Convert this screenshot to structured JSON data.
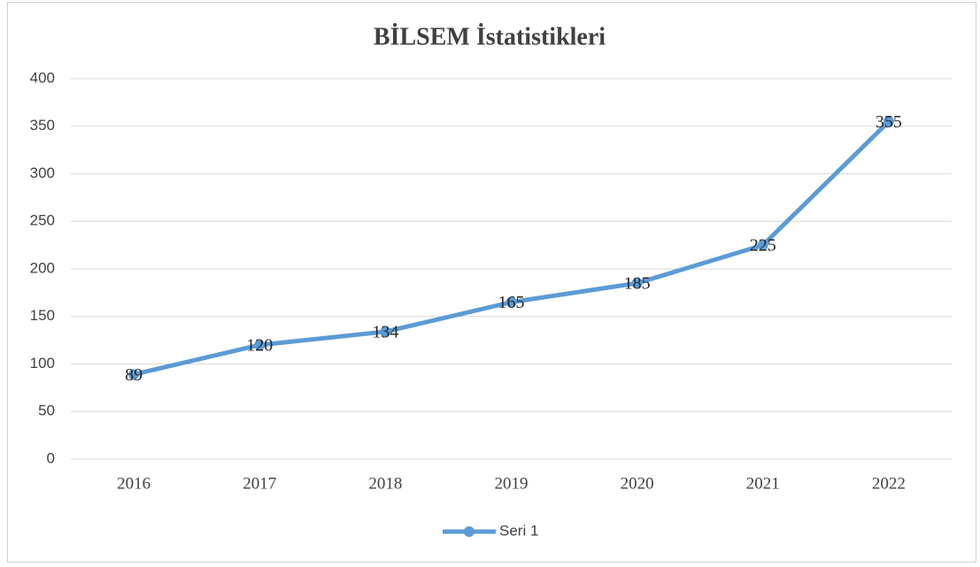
{
  "chart_data": {
    "type": "line",
    "title": "BİLSEM İstatistikleri",
    "categories": [
      "2016",
      "2017",
      "2018",
      "2019",
      "2020",
      "2021",
      "2022"
    ],
    "series": [
      {
        "name": "Seri 1",
        "color": "#5b9bd5",
        "values": [
          89,
          120,
          134,
          165,
          185,
          225,
          355
        ]
      }
    ],
    "ylim": [
      0,
      400
    ],
    "yticks": [
      0,
      50,
      100,
      150,
      200,
      250,
      300,
      350,
      400
    ],
    "grid": true,
    "legend": "bottom",
    "data_labels": true
  }
}
